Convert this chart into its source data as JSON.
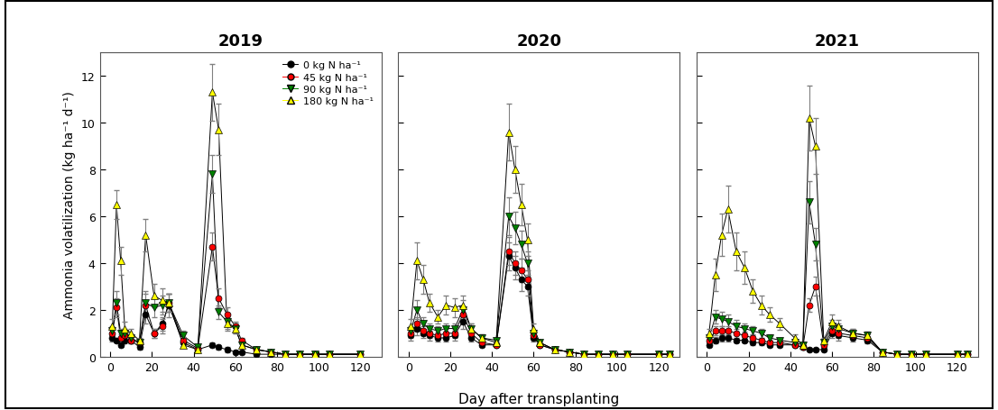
{
  "title_2019": "2019",
  "title_2020": "2020",
  "title_2021": "2021",
  "ylabel": "Ammonia volatilization (kg ha⁻¹ d⁻¹)",
  "xlabel": "Day after transplanting",
  "ylim": [
    0,
    13
  ],
  "yticks": [
    0,
    2,
    4,
    6,
    8,
    10,
    12
  ],
  "xlim": [
    -5,
    130
  ],
  "xticks": [
    0,
    20,
    40,
    60,
    80,
    100,
    120
  ],
  "legend_labels": [
    "0 kg N ha⁻¹",
    "45 kg N ha⁻¹",
    "90 kg N ha⁻¹",
    "180 kg N ha⁻¹"
  ],
  "data": {
    "2019": {
      "N0": {
        "x": [
          1,
          3,
          5,
          7,
          10,
          14,
          17,
          21,
          25,
          28,
          35,
          42,
          49,
          52,
          56,
          60,
          63,
          70,
          77,
          84,
          91,
          98,
          105,
          120
        ],
        "y": [
          0.8,
          0.7,
          0.5,
          0.7,
          0.7,
          0.4,
          1.8,
          1.0,
          1.4,
          2.2,
          0.6,
          0.3,
          0.5,
          0.4,
          0.3,
          0.2,
          0.2,
          0.1,
          0.1,
          0.1,
          0.1,
          0.1,
          0.1,
          0.1
        ],
        "yerr": [
          0.15,
          0.1,
          0.1,
          0.15,
          0.15,
          0.1,
          0.4,
          0.2,
          0.3,
          0.5,
          0.15,
          0.1,
          0.1,
          0.1,
          0.1,
          0.05,
          0.05,
          0.05,
          0.05,
          0.05,
          0.05,
          0.05,
          0.05,
          0.05
        ]
      },
      "N45": {
        "x": [
          1,
          3,
          5,
          7,
          10,
          14,
          17,
          21,
          25,
          28,
          35,
          42,
          49,
          52,
          56,
          60,
          63,
          70,
          77,
          84,
          91,
          98,
          105,
          120
        ],
        "y": [
          1.0,
          2.1,
          0.8,
          0.9,
          0.7,
          0.6,
          2.2,
          1.0,
          1.3,
          2.3,
          0.7,
          0.35,
          4.7,
          2.5,
          1.8,
          1.3,
          0.7,
          0.3,
          0.2,
          0.1,
          0.1,
          0.1,
          0.1,
          0.1
        ],
        "yerr": [
          0.2,
          0.4,
          0.15,
          0.2,
          0.15,
          0.1,
          0.5,
          0.2,
          0.3,
          0.4,
          0.15,
          0.1,
          0.6,
          0.4,
          0.3,
          0.2,
          0.1,
          0.1,
          0.05,
          0.05,
          0.05,
          0.05,
          0.05,
          0.05
        ]
      },
      "N90": {
        "x": [
          1,
          3,
          5,
          7,
          10,
          14,
          17,
          21,
          25,
          28,
          35,
          42,
          49,
          52,
          56,
          60,
          63,
          70,
          77,
          84,
          91,
          98,
          105,
          120
        ],
        "y": [
          1.1,
          2.3,
          1.0,
          1.0,
          0.8,
          0.6,
          2.3,
          2.1,
          2.2,
          2.3,
          0.9,
          0.4,
          7.8,
          1.9,
          1.5,
          1.2,
          0.5,
          0.3,
          0.2,
          0.1,
          0.1,
          0.1,
          0.1,
          0.1
        ],
        "yerr": [
          0.2,
          0.5,
          0.2,
          0.2,
          0.15,
          0.1,
          0.5,
          0.4,
          0.4,
          0.4,
          0.2,
          0.1,
          0.8,
          0.3,
          0.3,
          0.2,
          0.1,
          0.1,
          0.05,
          0.05,
          0.05,
          0.05,
          0.05,
          0.05
        ]
      },
      "N180": {
        "x": [
          1,
          3,
          5,
          7,
          10,
          14,
          17,
          21,
          25,
          28,
          35,
          42,
          49,
          52,
          56,
          60,
          63,
          70,
          77,
          84,
          91,
          98,
          105,
          120
        ],
        "y": [
          1.3,
          6.5,
          4.1,
          1.2,
          1.0,
          0.7,
          5.2,
          2.6,
          2.4,
          2.3,
          0.5,
          0.3,
          11.3,
          9.7,
          1.4,
          1.2,
          0.5,
          0.3,
          0.2,
          0.1,
          0.1,
          0.1,
          0.1,
          0.1
        ],
        "yerr": [
          0.3,
          0.6,
          0.6,
          0.3,
          0.2,
          0.1,
          0.7,
          0.5,
          0.5,
          0.4,
          0.1,
          0.1,
          1.2,
          1.1,
          0.3,
          0.2,
          0.1,
          0.1,
          0.05,
          0.05,
          0.05,
          0.05,
          0.05,
          0.05
        ]
      }
    },
    "2020": {
      "N0": {
        "x": [
          1,
          4,
          7,
          10,
          14,
          18,
          22,
          26,
          30,
          35,
          42,
          48,
          51,
          54,
          57,
          60,
          63,
          70,
          77,
          84,
          91,
          98,
          105,
          120,
          125
        ],
        "y": [
          0.9,
          1.2,
          1.0,
          0.9,
          0.8,
          0.8,
          0.9,
          1.5,
          0.8,
          0.5,
          0.5,
          4.3,
          3.8,
          3.3,
          3.0,
          0.8,
          0.5,
          0.3,
          0.2,
          0.1,
          0.1,
          0.1,
          0.1,
          0.1,
          0.1
        ],
        "yerr": [
          0.2,
          0.3,
          0.2,
          0.2,
          0.15,
          0.15,
          0.2,
          0.3,
          0.15,
          0.1,
          0.1,
          0.6,
          0.5,
          0.5,
          0.4,
          0.15,
          0.1,
          0.1,
          0.05,
          0.05,
          0.05,
          0.05,
          0.05,
          0.05,
          0.05
        ]
      },
      "N45": {
        "x": [
          1,
          4,
          7,
          10,
          14,
          18,
          22,
          26,
          30,
          35,
          42,
          48,
          51,
          54,
          57,
          60,
          63,
          70,
          77,
          84,
          91,
          98,
          105,
          120,
          125
        ],
        "y": [
          1.0,
          1.4,
          1.1,
          1.0,
          0.9,
          1.0,
          1.0,
          1.8,
          1.0,
          0.6,
          0.5,
          4.5,
          4.0,
          3.7,
          3.3,
          0.9,
          0.5,
          0.3,
          0.2,
          0.1,
          0.1,
          0.1,
          0.1,
          0.1,
          0.1
        ],
        "yerr": [
          0.2,
          0.3,
          0.2,
          0.2,
          0.15,
          0.2,
          0.2,
          0.3,
          0.15,
          0.1,
          0.1,
          0.6,
          0.5,
          0.5,
          0.4,
          0.15,
          0.1,
          0.1,
          0.05,
          0.05,
          0.05,
          0.05,
          0.05,
          0.05,
          0.05
        ]
      },
      "N90": {
        "x": [
          1,
          4,
          7,
          10,
          14,
          18,
          22,
          26,
          30,
          35,
          42,
          48,
          51,
          54,
          57,
          60,
          63,
          70,
          77,
          84,
          91,
          98,
          105,
          120,
          125
        ],
        "y": [
          1.1,
          2.0,
          1.4,
          1.2,
          1.1,
          1.2,
          1.2,
          2.0,
          1.2,
          0.8,
          0.7,
          6.0,
          5.5,
          4.8,
          4.0,
          1.0,
          0.6,
          0.3,
          0.2,
          0.1,
          0.1,
          0.1,
          0.1,
          0.1,
          0.1
        ],
        "yerr": [
          0.2,
          0.4,
          0.3,
          0.2,
          0.2,
          0.2,
          0.2,
          0.4,
          0.2,
          0.15,
          0.1,
          0.8,
          0.7,
          0.6,
          0.5,
          0.15,
          0.1,
          0.1,
          0.05,
          0.05,
          0.05,
          0.05,
          0.05,
          0.05,
          0.05
        ]
      },
      "N180": {
        "x": [
          1,
          4,
          7,
          10,
          14,
          18,
          22,
          26,
          30,
          35,
          42,
          48,
          51,
          54,
          57,
          60,
          63,
          70,
          77,
          84,
          91,
          98,
          105,
          120,
          125
        ],
        "y": [
          1.3,
          4.1,
          3.3,
          2.3,
          1.7,
          2.2,
          2.1,
          2.2,
          1.2,
          0.8,
          0.6,
          9.6,
          8.0,
          6.5,
          5.0,
          1.2,
          0.6,
          0.3,
          0.2,
          0.1,
          0.1,
          0.1,
          0.1,
          0.1,
          0.1
        ],
        "yerr": [
          0.3,
          0.8,
          0.6,
          0.4,
          0.3,
          0.4,
          0.4,
          0.4,
          0.2,
          0.15,
          0.1,
          1.2,
          1.0,
          0.9,
          0.7,
          0.2,
          0.1,
          0.1,
          0.05,
          0.05,
          0.05,
          0.05,
          0.05,
          0.05,
          0.05
        ]
      }
    },
    "2021": {
      "N0": {
        "x": [
          1,
          4,
          7,
          10,
          14,
          18,
          22,
          26,
          30,
          35,
          42,
          46,
          49,
          52,
          56,
          60,
          63,
          70,
          77,
          84,
          91,
          98,
          105,
          120,
          125
        ],
        "y": [
          0.5,
          0.7,
          0.8,
          0.8,
          0.7,
          0.7,
          0.6,
          0.6,
          0.5,
          0.5,
          0.5,
          0.4,
          0.3,
          0.3,
          0.3,
          1.0,
          0.9,
          0.8,
          0.7,
          0.2,
          0.1,
          0.1,
          0.1,
          0.1,
          0.1
        ],
        "yerr": [
          0.1,
          0.15,
          0.15,
          0.15,
          0.1,
          0.1,
          0.1,
          0.1,
          0.1,
          0.1,
          0.1,
          0.1,
          0.05,
          0.05,
          0.05,
          0.2,
          0.2,
          0.15,
          0.15,
          0.05,
          0.05,
          0.05,
          0.05,
          0.05,
          0.05
        ]
      },
      "N45": {
        "x": [
          1,
          4,
          7,
          10,
          14,
          18,
          22,
          26,
          30,
          35,
          42,
          46,
          49,
          52,
          56,
          60,
          63,
          70,
          77,
          84,
          91,
          98,
          105,
          120,
          125
        ],
        "y": [
          0.7,
          1.1,
          1.1,
          1.1,
          1.0,
          0.9,
          0.8,
          0.7,
          0.6,
          0.6,
          0.5,
          0.4,
          2.2,
          3.0,
          0.5,
          1.1,
          1.0,
          0.9,
          0.8,
          0.2,
          0.1,
          0.1,
          0.1,
          0.1,
          0.1
        ],
        "yerr": [
          0.1,
          0.2,
          0.2,
          0.2,
          0.2,
          0.15,
          0.15,
          0.1,
          0.1,
          0.1,
          0.1,
          0.1,
          0.3,
          0.4,
          0.1,
          0.2,
          0.2,
          0.15,
          0.15,
          0.05,
          0.05,
          0.05,
          0.05,
          0.05,
          0.05
        ]
      },
      "N90": {
        "x": [
          1,
          4,
          7,
          10,
          14,
          18,
          22,
          26,
          30,
          35,
          42,
          46,
          49,
          52,
          56,
          60,
          63,
          70,
          77,
          84,
          91,
          98,
          105,
          120,
          125
        ],
        "y": [
          0.8,
          1.7,
          1.6,
          1.5,
          1.3,
          1.2,
          1.1,
          1.0,
          0.8,
          0.7,
          0.6,
          0.5,
          6.6,
          4.8,
          0.6,
          1.3,
          1.2,
          1.0,
          0.9,
          0.2,
          0.1,
          0.1,
          0.1,
          0.1,
          0.1
        ],
        "yerr": [
          0.15,
          0.3,
          0.3,
          0.3,
          0.25,
          0.2,
          0.2,
          0.2,
          0.15,
          0.1,
          0.1,
          0.1,
          0.9,
          0.7,
          0.1,
          0.25,
          0.2,
          0.2,
          0.15,
          0.05,
          0.05,
          0.05,
          0.05,
          0.05,
          0.05
        ]
      },
      "N180": {
        "x": [
          1,
          4,
          7,
          10,
          14,
          18,
          22,
          26,
          30,
          35,
          42,
          46,
          49,
          52,
          56,
          60,
          63,
          70,
          77,
          84,
          91,
          98,
          105,
          120,
          125
        ],
        "y": [
          1.0,
          3.5,
          5.2,
          6.3,
          4.5,
          3.8,
          2.8,
          2.2,
          1.8,
          1.4,
          0.8,
          0.5,
          10.2,
          9.0,
          0.7,
          1.5,
          1.3,
          1.0,
          0.9,
          0.2,
          0.1,
          0.1,
          0.1,
          0.1,
          0.1
        ],
        "yerr": [
          0.2,
          0.7,
          0.9,
          1.0,
          0.8,
          0.7,
          0.5,
          0.4,
          0.3,
          0.25,
          0.15,
          0.1,
          1.4,
          1.2,
          0.1,
          0.3,
          0.25,
          0.2,
          0.15,
          0.05,
          0.05,
          0.05,
          0.05,
          0.05,
          0.05
        ]
      }
    }
  }
}
